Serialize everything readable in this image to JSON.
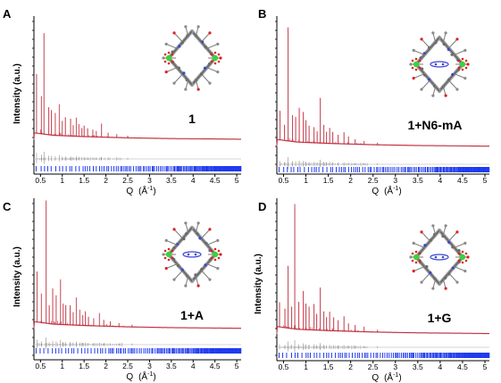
{
  "colors": {
    "observed": "#cc2a3c",
    "calculated": "#c8c8c8",
    "difference": "#8a8a8a",
    "bragg_ticks": "#1f3bf0",
    "axis": "#000000",
    "atom_green": "#3cd23c",
    "atom_red": "#e02020",
    "atom_blue": "#3a46d6",
    "atom_grey": "#9a9a9a"
  },
  "chart_data": [
    {
      "type": "line",
      "panel_letter": "A",
      "compound_label": "1",
      "guest_in_pore": false,
      "xlabel_main": "Q",
      "xlabel_unit": "(Å",
      "xlabel_exp": "-1",
      "xlabel_close": ")",
      "ylabel": "Intensity (a.u.)",
      "xlim": [
        0.35,
        5.1
      ],
      "ylim": [
        0,
        100
      ],
      "grid": false,
      "x_ticks": [
        "0.5",
        "1",
        "1.5",
        "2",
        "2.5",
        "3",
        "3.5",
        "4",
        "4.5",
        "5"
      ],
      "background": [
        [
          0.36,
          7.5
        ],
        [
          0.8,
          5.6
        ],
        [
          1.5,
          4.6
        ],
        [
          2.5,
          3.6
        ],
        [
          3.5,
          3.0
        ],
        [
          4.5,
          2.7
        ],
        [
          5.05,
          2.5
        ]
      ],
      "peaks": [
        [
          0.41,
          47
        ],
        [
          0.52,
          30
        ],
        [
          0.58,
          80
        ],
        [
          0.69,
          22
        ],
        [
          0.75,
          20
        ],
        [
          0.84,
          18
        ],
        [
          0.93,
          25
        ],
        [
          1.0,
          12
        ],
        [
          1.07,
          15
        ],
        [
          1.19,
          14
        ],
        [
          1.25,
          9
        ],
        [
          1.32,
          15
        ],
        [
          1.38,
          10
        ],
        [
          1.45,
          7
        ],
        [
          1.5,
          9
        ],
        [
          1.58,
          7
        ],
        [
          1.7,
          6
        ],
        [
          1.78,
          5
        ],
        [
          1.9,
          11
        ],
        [
          2.05,
          4
        ],
        [
          2.25,
          3
        ],
        [
          2.5,
          2
        ]
      ]
    },
    {
      "type": "line",
      "panel_letter": "B",
      "compound_label": "1+N6-mA",
      "guest_in_pore": true,
      "xlabel_main": "Q",
      "xlabel_unit": "(Å",
      "xlabel_exp": "-1",
      "xlabel_close": ")",
      "ylabel": "",
      "xlim": [
        0.35,
        5.1
      ],
      "ylim": [
        0,
        100
      ],
      "grid": false,
      "x_ticks": [
        "0.5",
        "1",
        "1.5",
        "2",
        "2.5",
        "3",
        "3.5",
        "4",
        "4.5",
        "5"
      ],
      "background": [
        [
          0.36,
          7.5
        ],
        [
          0.8,
          5.6
        ],
        [
          1.5,
          4.6
        ],
        [
          2.5,
          3.6
        ],
        [
          3.5,
          3.0
        ],
        [
          4.5,
          2.7
        ],
        [
          5.05,
          2.5
        ]
      ],
      "peaks": [
        [
          0.42,
          22
        ],
        [
          0.52,
          12
        ],
        [
          0.6,
          85
        ],
        [
          0.7,
          20
        ],
        [
          0.77,
          19
        ],
        [
          0.85,
          26
        ],
        [
          0.94,
          23
        ],
        [
          1.0,
          17
        ],
        [
          1.07,
          13
        ],
        [
          1.18,
          12
        ],
        [
          1.25,
          9
        ],
        [
          1.32,
          34
        ],
        [
          1.4,
          14
        ],
        [
          1.46,
          9
        ],
        [
          1.53,
          12
        ],
        [
          1.6,
          9
        ],
        [
          1.72,
          7
        ],
        [
          1.85,
          9
        ],
        [
          1.95,
          6
        ],
        [
          2.1,
          4
        ],
        [
          2.3,
          3
        ],
        [
          2.6,
          2
        ]
      ]
    },
    {
      "type": "line",
      "panel_letter": "C",
      "compound_label": "1+A",
      "guest_in_pore": true,
      "xlabel_main": "Q",
      "xlabel_unit": "(Å",
      "xlabel_exp": "-1",
      "xlabel_close": ")",
      "ylabel": "Intensity (a.u.)",
      "xlim": [
        0.35,
        5.1
      ],
      "ylim": [
        0,
        100
      ],
      "grid": false,
      "x_ticks": [
        "0.5",
        "1",
        "1.5",
        "2",
        "2.5",
        "3",
        "3.5",
        "4",
        "4.5",
        "5"
      ],
      "background": [
        [
          0.36,
          7.5
        ],
        [
          0.8,
          5.6
        ],
        [
          1.5,
          4.6
        ],
        [
          2.5,
          3.6
        ],
        [
          3.5,
          3.0
        ],
        [
          4.5,
          2.7
        ],
        [
          5.05,
          2.5
        ]
      ],
      "peaks": [
        [
          0.42,
          38
        ],
        [
          0.52,
          22
        ],
        [
          0.63,
          92
        ],
        [
          0.7,
          14
        ],
        [
          0.78,
          27
        ],
        [
          0.86,
          22
        ],
        [
          0.96,
          34
        ],
        [
          1.02,
          16
        ],
        [
          1.08,
          15
        ],
        [
          1.18,
          15
        ],
        [
          1.25,
          10
        ],
        [
          1.32,
          21
        ],
        [
          1.4,
          12
        ],
        [
          1.47,
          8
        ],
        [
          1.53,
          11
        ],
        [
          1.6,
          7
        ],
        [
          1.72,
          6
        ],
        [
          1.85,
          10
        ],
        [
          1.95,
          5
        ],
        [
          2.1,
          4
        ],
        [
          2.3,
          3
        ],
        [
          2.6,
          2
        ]
      ]
    },
    {
      "type": "line",
      "panel_letter": "D",
      "compound_label": "1+G",
      "guest_in_pore": true,
      "xlabel_main": "Q",
      "xlabel_unit": "(Å",
      "xlabel_exp": "-1",
      "xlabel_close": ")",
      "ylabel": "Intensity (a.u.)",
      "xlim": [
        0.35,
        5.1
      ],
      "ylim": [
        0,
        100
      ],
      "grid": false,
      "x_ticks": [
        "0.5",
        "1",
        "1.5",
        "2",
        "2.5",
        "3",
        "3.5",
        "4",
        "4.5",
        "5"
      ],
      "background": [
        [
          0.36,
          7.5
        ],
        [
          0.8,
          5.6
        ],
        [
          1.5,
          4.6
        ],
        [
          2.5,
          3.6
        ],
        [
          3.5,
          3.0
        ],
        [
          4.5,
          2.7
        ],
        [
          5.05,
          2.5
        ]
      ],
      "peaks": [
        [
          0.41,
          18
        ],
        [
          0.53,
          14
        ],
        [
          0.6,
          45
        ],
        [
          0.68,
          16
        ],
        [
          0.75,
          90
        ],
        [
          0.84,
          20
        ],
        [
          0.94,
          28
        ],
        [
          1.0,
          19
        ],
        [
          1.07,
          17
        ],
        [
          1.18,
          19
        ],
        [
          1.24,
          12
        ],
        [
          1.32,
          31
        ],
        [
          1.4,
          14
        ],
        [
          1.46,
          10
        ],
        [
          1.53,
          14
        ],
        [
          1.62,
          10
        ],
        [
          1.72,
          8
        ],
        [
          1.85,
          11
        ],
        [
          1.95,
          6
        ],
        [
          2.1,
          5
        ],
        [
          2.3,
          4
        ],
        [
          2.6,
          2
        ]
      ]
    }
  ]
}
